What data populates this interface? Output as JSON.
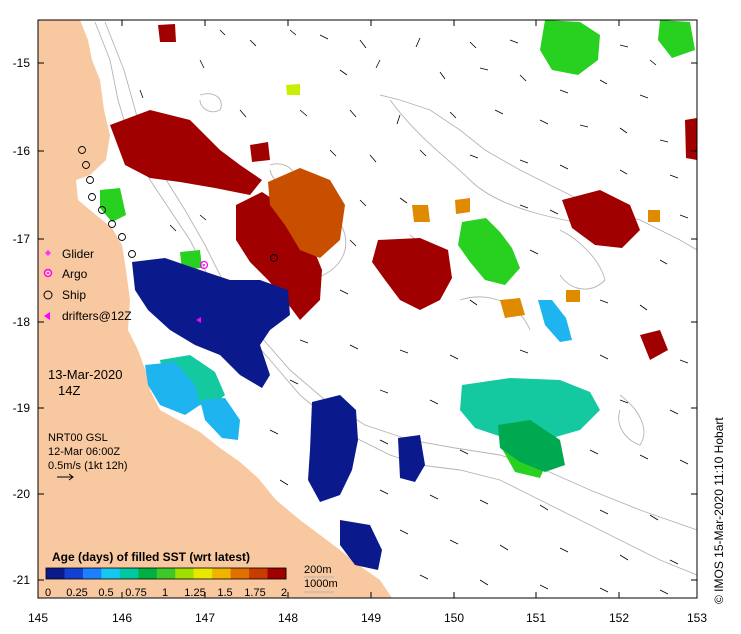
{
  "map": {
    "x_ticks": [
      "145",
      "146",
      "147",
      "148",
      "149",
      "150",
      "151",
      "152",
      "153"
    ],
    "y_ticks": [
      "-15",
      "-16",
      "-17",
      "-18",
      "-19",
      "-20",
      "-21"
    ],
    "legend_symbols": [
      {
        "label": "Glider",
        "symbol": "diamond",
        "color": "#ff33ff"
      },
      {
        "label": "Argo",
        "symbol": "circle-dot",
        "color": "#ff00ff"
      },
      {
        "label": "Ship",
        "symbol": "open-circle",
        "color": "#000000"
      },
      {
        "label": "drifters@12Z",
        "symbol": "left-triangle",
        "color": "#ff00ff"
      }
    ],
    "date_label": "13-Mar-2020",
    "time_label": "14Z",
    "current_info": {
      "product": "NRT00 GSL",
      "time": "12-Mar 06:00Z",
      "scale": "0.5m/s (1kt 12h)",
      "arrow_icon": "right-arrow-icon"
    },
    "colorbar": {
      "title": "Age (days) of filled SST (wrt latest)",
      "tick_labels": [
        "0",
        "0.25",
        "0.5",
        "0.75",
        "1",
        "1.25",
        "1.5",
        "1.75",
        "2"
      ],
      "colors": [
        "#0a1a8c",
        "#1340d0",
        "#1a80ff",
        "#14c8f0",
        "#00c8a0",
        "#00b040",
        "#40c828",
        "#a0e000",
        "#e8e800",
        "#f0b400",
        "#e07000",
        "#c83c00",
        "#a00000"
      ]
    },
    "contour_legend": [
      "200m",
      "1000m"
    ],
    "credit": "© IMOS 15-Mar-2020 11:10 Hobart",
    "land_color": "#f8c8a0",
    "contour_color": "#b4b4b4"
  }
}
